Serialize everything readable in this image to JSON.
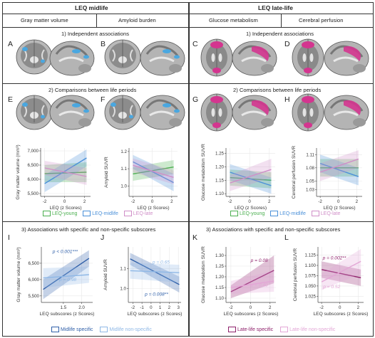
{
  "headers": {
    "midlife": "LEQ midlife",
    "latelife": "LEQ late-life",
    "col_gm": "Gray matter volume",
    "col_amy": "Amyloid burden",
    "col_glu": "Glucose metabolism",
    "col_perf": "Cerebral perfusion"
  },
  "sections": {
    "s1_left": "1) Independent associations",
    "s1_right": "1) Independent associations",
    "s2_left": "2) Comparisons between life periods",
    "s2_right": "2) Comparisons between life periods",
    "s3_left": "3) Associations with specific and non-specific subscores",
    "s3_right": "3) Associations with specific and non-specific subscores"
  },
  "letters": [
    "A",
    "B",
    "C",
    "D",
    "E",
    "F",
    "G",
    "H",
    "I",
    "J",
    "K",
    "L"
  ],
  "legends": {
    "row2": [
      "LEQ-young",
      "LEQ-midlife",
      "LEQ-late"
    ],
    "row3_left": [
      "Midlife specific",
      "Midlife non-specific"
    ],
    "row3_right": [
      "Late-life specific",
      "Late-life non-specific"
    ]
  },
  "colors": {
    "young": "#4caf50",
    "midlife": "#4a90d9",
    "late": "#d08fc8",
    "mid_specific": "#2f5fa8",
    "mid_nonspecific": "#8fb8e6",
    "late_specific": "#8e1f6a",
    "late_nonspecific": "#e3a6d6",
    "blob_blue": "#4aa7e0",
    "blob_pink": "#d4358f"
  },
  "chart_data": [
    {
      "id": "E-F-left",
      "type": "line",
      "ylabel": "Gray matter volume (mm³)",
      "xlabel": "LEQ (z Scores)",
      "xlim": [
        -2.4,
        2.6
      ],
      "ylim": [
        5400,
        7100
      ],
      "xticks": [
        "-2",
        "0",
        "2"
      ],
      "xtickvals": [
        -2,
        0,
        2
      ],
      "yticks": [
        "5,500",
        "6,000",
        "6,500",
        "7,000"
      ],
      "ytickvals": [
        5500,
        6000,
        6500,
        7000
      ],
      "series": [
        {
          "name": "LEQ-young",
          "color": "young",
          "x": [
            -2,
            2.2
          ],
          "y": [
            6200,
            6250
          ],
          "band": [
            [
              5900,
              6500
            ],
            [
              5900,
              6600
            ]
          ]
        },
        {
          "name": "LEQ-midlife",
          "color": "midlife",
          "x": [
            -2,
            2.2
          ],
          "y": [
            5850,
            6750
          ],
          "band": [
            [
              5550,
              6150
            ],
            [
              6450,
              7050
            ]
          ]
        },
        {
          "name": "LEQ-late",
          "color": "late",
          "x": [
            -2,
            2.2
          ],
          "y": [
            6400,
            6100
          ],
          "band": [
            [
              6150,
              6650
            ],
            [
              5800,
              6400
            ]
          ]
        }
      ]
    },
    {
      "id": "F",
      "type": "line",
      "ylabel": "Amyloid  SUVR",
      "xlabel": "LEQ (z Scores)",
      "xlim": [
        -2.4,
        2.6
      ],
      "ylim": [
        0.94,
        1.22
      ],
      "xticks": [
        "-2",
        "0",
        "2"
      ],
      "xtickvals": [
        -2,
        0,
        2
      ],
      "yticks": [
        "1.0",
        "1.1",
        "1.2"
      ],
      "ytickvals": [
        1.0,
        1.1,
        1.2
      ],
      "series": [
        {
          "name": "LEQ-young",
          "color": "young",
          "x": [
            -2,
            2.2
          ],
          "y": [
            1.07,
            1.11
          ],
          "band": [
            [
              1.03,
              1.11
            ],
            [
              1.07,
              1.15
            ]
          ]
        },
        {
          "name": "LEQ-midlife",
          "color": "midlife",
          "x": [
            -2,
            2.2
          ],
          "y": [
            1.14,
            1.02
          ],
          "band": [
            [
              1.1,
              1.18
            ],
            [
              0.97,
              1.07
            ]
          ]
        },
        {
          "name": "LEQ-late",
          "color": "late",
          "x": [
            -2,
            2.2
          ],
          "y": [
            1.12,
            1.05
          ],
          "band": [
            [
              1.08,
              1.16
            ],
            [
              1.01,
              1.09
            ]
          ]
        }
      ]
    },
    {
      "id": "G",
      "type": "line",
      "ylabel": "Glucose metabolism SUVR",
      "xlabel": "LEQ (z Scores)",
      "xlim": [
        -2.4,
        2.6
      ],
      "ylim": [
        1.09,
        1.27
      ],
      "xticks": [
        "-2",
        "0",
        "2"
      ],
      "xtickvals": [
        -2,
        0,
        2
      ],
      "yticks": [
        "1.10",
        "1.15",
        "1.20",
        "1.25"
      ],
      "ytickvals": [
        1.1,
        1.15,
        1.2,
        1.25
      ],
      "series": [
        {
          "name": "LEQ-young",
          "color": "young",
          "x": [
            -2,
            2.2
          ],
          "y": [
            1.16,
            1.15
          ],
          "band": [
            [
              1.13,
              1.19
            ],
            [
              1.12,
              1.18
            ]
          ]
        },
        {
          "name": "LEQ-midlife",
          "color": "midlife",
          "x": [
            -2,
            2.2
          ],
          "y": [
            1.18,
            1.13
          ],
          "band": [
            [
              1.15,
              1.21
            ],
            [
              1.1,
              1.16
            ]
          ]
        },
        {
          "name": "LEQ-late",
          "color": "late",
          "x": [
            -2,
            2.2
          ],
          "y": [
            1.14,
            1.19
          ],
          "band": [
            [
              1.11,
              1.17
            ],
            [
              1.16,
              1.23
            ]
          ]
        }
      ]
    },
    {
      "id": "H",
      "type": "line",
      "ylabel": "Cerebral perfusion SUVR",
      "xlabel": "LEQ (z Scores)",
      "xlim": [
        -2.4,
        2.6
      ],
      "ylim": [
        1.015,
        1.125
      ],
      "xticks": [
        "-2",
        "0",
        "2"
      ],
      "xtickvals": [
        -2,
        0,
        2
      ],
      "yticks": [
        "1.03",
        "1.05",
        "1.08",
        "1.11"
      ],
      "ytickvals": [
        1.03,
        1.05,
        1.08,
        1.11
      ],
      "series": [
        {
          "name": "LEQ-young",
          "color": "young",
          "x": [
            -2,
            2.2
          ],
          "y": [
            1.08,
            1.08
          ],
          "band": [
            [
              1.06,
              1.1
            ],
            [
              1.06,
              1.1
            ]
          ]
        },
        {
          "name": "LEQ-midlife",
          "color": "midlife",
          "x": [
            -2,
            2.2
          ],
          "y": [
            1.09,
            1.06
          ],
          "band": [
            [
              1.07,
              1.11
            ],
            [
              1.04,
              1.08
            ]
          ]
        },
        {
          "name": "LEQ-late",
          "color": "late",
          "x": [
            -2,
            2.2
          ],
          "y": [
            1.07,
            1.1
          ],
          "band": [
            [
              1.05,
              1.09
            ],
            [
              1.08,
              1.12
            ]
          ]
        }
      ]
    },
    {
      "id": "I",
      "type": "line",
      "ylabel": "Gray matter volume (mm³)",
      "xlabel": "LEQ subscores (z Scores)",
      "xlim": [
        0.9,
        2.3
      ],
      "ylim": [
        5300,
        7000
      ],
      "xticks": [
        "1.5",
        "2.0"
      ],
      "xtickvals": [
        1.5,
        2.0
      ],
      "yticks": [
        "5,500",
        "6,000",
        "6,500"
      ],
      "ytickvals": [
        5500,
        6000,
        6500
      ],
      "annotations": [
        {
          "text": "p < 0.001***",
          "x": 1.55,
          "y": 6820,
          "color": "mid_specific"
        },
        {
          "text": "p = 0.98",
          "x": 1.62,
          "y": 5950,
          "color": "mid_nonspecific"
        }
      ],
      "series": [
        {
          "name": "Midlife specific",
          "color": "mid_specific",
          "x": [
            0.95,
            2.2
          ],
          "y": [
            5700,
            6650
          ],
          "band": [
            [
              5400,
              6000
            ],
            [
              6400,
              6900
            ]
          ]
        },
        {
          "name": "Midlife non-specific",
          "color": "mid_nonspecific",
          "x": [
            0.95,
            2.2
          ],
          "y": [
            6050,
            6150
          ],
          "band": [
            [
              5750,
              6350
            ],
            [
              5900,
              6400
            ]
          ]
        }
      ]
    },
    {
      "id": "J",
      "type": "line",
      "ylabel": "Amyloid SUVR",
      "xlabel": "LEQ subscores (z Scores)",
      "xlim": [
        -2.5,
        3.3
      ],
      "ylim": [
        0.93,
        1.21
      ],
      "xticks": [
        "-2",
        "-1",
        "0",
        "1",
        "2",
        "3"
      ],
      "xtickvals": [
        -2,
        -1,
        0,
        1,
        2,
        3
      ],
      "yticks": [
        "1.0",
        "1.1"
      ],
      "ytickvals": [
        1.0,
        1.1
      ],
      "annotations": [
        {
          "text": "p = 0.65",
          "x": 1.1,
          "y": 1.125,
          "color": "mid_nonspecific"
        },
        {
          "text": "p = 0.008**",
          "x": 0.6,
          "y": 0.965,
          "color": "mid_specific"
        }
      ],
      "series": [
        {
          "name": "Midlife specific",
          "color": "mid_specific",
          "x": [
            -2.3,
            3.1
          ],
          "y": [
            1.15,
            1.02
          ],
          "band": [
            [
              1.12,
              1.18
            ],
            [
              0.98,
              1.06
            ]
          ]
        },
        {
          "name": "Midlife non-specific",
          "color": "mid_nonspecific",
          "x": [
            -2.3,
            3.1
          ],
          "y": [
            1.09,
            1.08
          ],
          "band": [
            [
              1.05,
              1.13
            ],
            [
              1.03,
              1.12
            ]
          ]
        }
      ]
    },
    {
      "id": "K",
      "type": "line",
      "ylabel": "Glucose metabolism SUVR",
      "xlabel": "LEQ subscores (z Scores)",
      "xlim": [
        -2.5,
        2.6
      ],
      "ylim": [
        1.08,
        1.34
      ],
      "xticks": [
        "-2",
        "0",
        "2"
      ],
      "xtickvals": [
        -2,
        0,
        2
      ],
      "yticks": [
        "1.10",
        "1.15",
        "1.20",
        "1.25",
        "1.30"
      ],
      "ytickvals": [
        1.1,
        1.15,
        1.2,
        1.25,
        1.3
      ],
      "annotations": [
        {
          "text": "p = 0.08",
          "x": 0.9,
          "y": 1.27,
          "color": "late_specific"
        },
        {
          "text": "p = 0.40",
          "x": 0.9,
          "y": 1.155,
          "color": "late_nonspecific"
        }
      ],
      "series": [
        {
          "name": "Late-life specific",
          "color": "late_specific",
          "x": [
            -2,
            2.4
          ],
          "y": [
            1.13,
            1.23
          ],
          "band": [
            [
              1.1,
              1.16
            ],
            [
              1.17,
              1.3
            ]
          ]
        },
        {
          "name": "Late-life non-specific",
          "color": "late_nonspecific",
          "x": [
            -2,
            2.4
          ],
          "y": [
            1.15,
            1.18
          ],
          "band": [
            [
              1.12,
              1.18
            ],
            [
              1.13,
              1.23
            ]
          ]
        }
      ]
    },
    {
      "id": "L",
      "type": "line",
      "ylabel": "Cerebral perfusion SUVR",
      "xlabel": "LEQ subscores (z Scores)",
      "xlim": [
        -2.4,
        2.6
      ],
      "ylim": [
        1.01,
        1.145
      ],
      "xticks": [
        "-2",
        "0",
        "2"
      ],
      "xtickvals": [
        -2,
        0,
        2
      ],
      "yticks": [
        "1.025",
        "1.050",
        "1.075",
        "1.100",
        "1.125"
      ],
      "ytickvals": [
        1.025,
        1.05,
        1.075,
        1.1,
        1.125
      ],
      "annotations": [
        {
          "text": "p = 0.002**",
          "x": -0.6,
          "y": 1.115,
          "color": "late_specific"
        },
        {
          "text": "p = 0.52",
          "x": -0.9,
          "y": 1.045,
          "color": "late_nonspecific"
        }
      ],
      "series": [
        {
          "name": "Late-life specific",
          "color": "late_specific",
          "x": [
            -2,
            2.3
          ],
          "y": [
            1.09,
            1.07
          ],
          "band": [
            [
              1.07,
              1.11
            ],
            [
              1.05,
              1.09
            ]
          ]
        },
        {
          "name": "Late-life non-specific",
          "color": "late_nonspecific",
          "x": [
            -2,
            2.3
          ],
          "y": [
            1.06,
            1.11
          ],
          "band": [
            [
              1.04,
              1.08
            ],
            [
              1.08,
              1.14
            ]
          ]
        }
      ]
    }
  ]
}
